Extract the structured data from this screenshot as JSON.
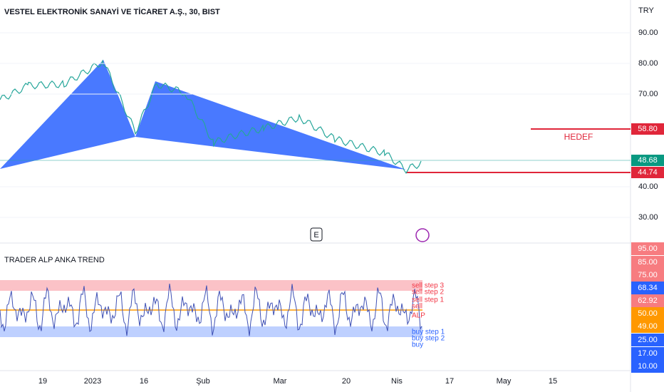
{
  "header": {
    "title": "VESTEL ELEKTRONİK SANAYİ VE TİCARET A.Ş., 30, BIST",
    "currency": "TRY"
  },
  "price_axis": {
    "labels": [
      "90.00",
      "80.00",
      "70.00",
      "40.00",
      "30.00"
    ]
  },
  "price_tags": [
    "58.80",
    "48.68",
    "44.74"
  ],
  "target_label": "HEDEF",
  "events": {
    "earnings": "E"
  },
  "indicator": {
    "title": "TRADER ALP ANKA TREND",
    "axis_labels": [
      "95.00",
      "85.00",
      "75.00",
      "68.34",
      "62.92",
      "50.00",
      "49.00",
      "25.00",
      "17.00",
      "10.00"
    ],
    "signals": [
      "sell step 3",
      "sell step 2",
      "sell step 1",
      "sell",
      "ALP",
      "buy step 1",
      "buy step 2",
      "buy"
    ]
  },
  "time_axis": [
    "19",
    "2023",
    "16",
    "Şub",
    "Mar",
    "20",
    "Nis",
    "17",
    "May",
    "15"
  ]
}
